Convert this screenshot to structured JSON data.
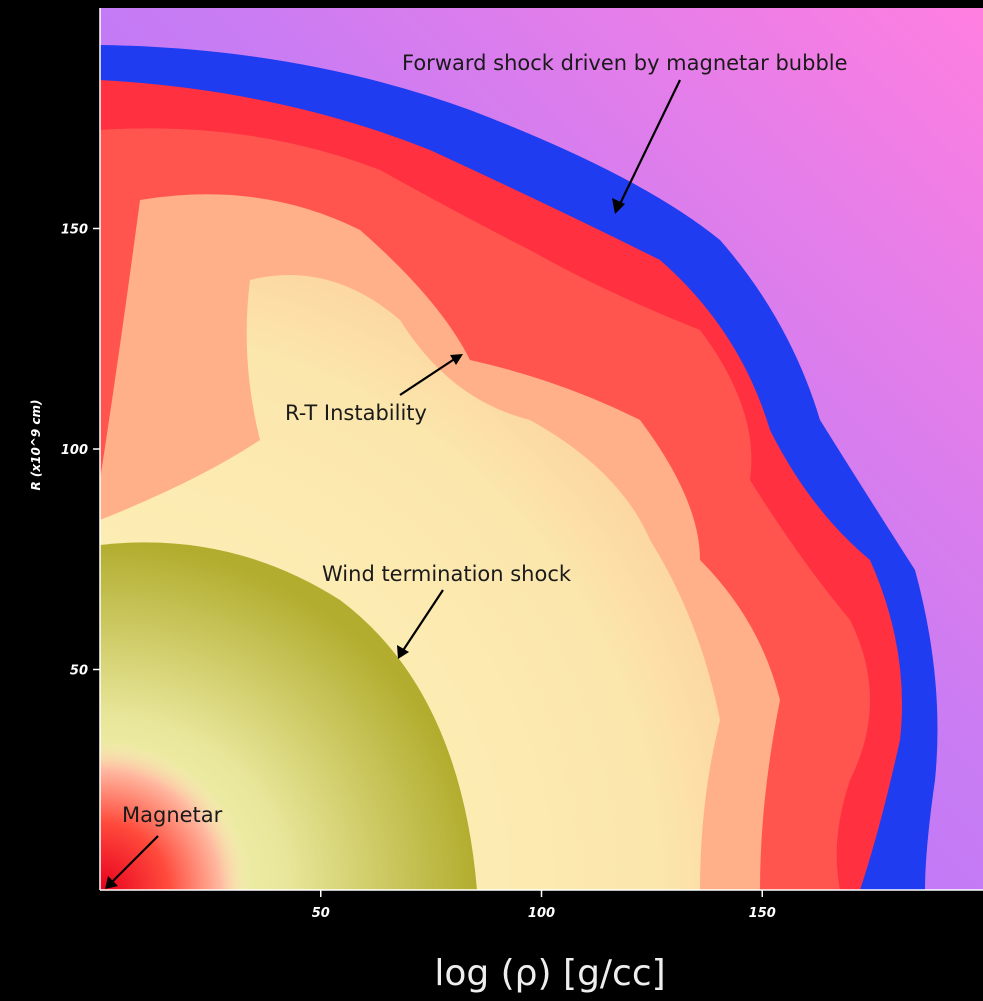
{
  "chart_data": {
    "type": "image",
    "x_label": "log (ρ) [g/cc]",
    "y_label": "R (x10^9 cm)",
    "xlim": [
      0,
      200
    ],
    "ylim": [
      0,
      200
    ],
    "xticks": [
      50,
      100,
      150
    ],
    "yticks": [
      50,
      100,
      150
    ],
    "annotations": [
      "Forward shock driven by magnetar bubble",
      "R-T Instability",
      "Wind termination shock",
      "Magnetar"
    ]
  }
}
